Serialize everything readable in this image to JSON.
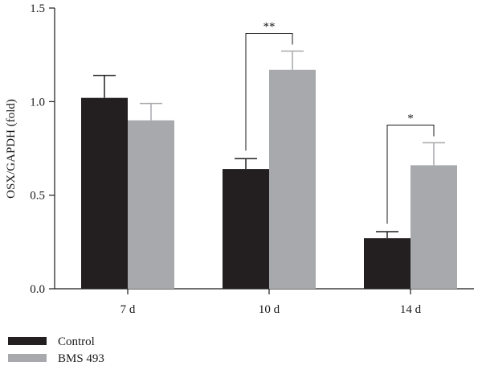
{
  "chart_data": {
    "type": "bar",
    "categories": [
      "7 d",
      "10 d",
      "14 d"
    ],
    "series": [
      {
        "name": "Control",
        "color": "#231f20",
        "values": [
          1.02,
          0.64,
          0.27
        ],
        "errors": [
          0.12,
          0.055,
          0.035
        ]
      },
      {
        "name": "BMS 493",
        "color": "#a7a9ac",
        "values": [
          0.9,
          1.17,
          0.66
        ],
        "errors": [
          0.09,
          0.1,
          0.12
        ]
      }
    ],
    "ylabel": "OSX/GAPDH (fold)",
    "xlabel": "",
    "ylim": [
      0,
      1.5
    ],
    "yticks": [
      "0.0",
      "0.5",
      "1.0",
      "1.5"
    ],
    "legend_position": "bottom-left",
    "significance": [
      {
        "category": "10 d",
        "label": "**"
      },
      {
        "category": "14 d",
        "label": "*"
      }
    ],
    "grid": false
  }
}
